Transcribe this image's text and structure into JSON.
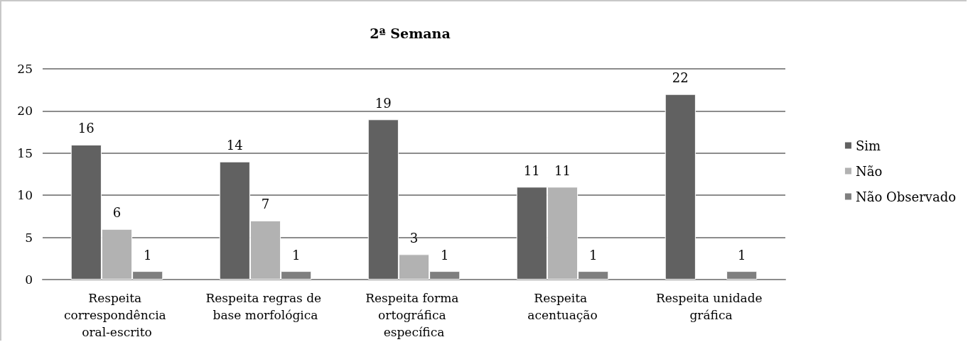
{
  "chart_data": {
    "type": "bar",
    "title": "2ª Semana",
    "categories": [
      "Respeita correspondência oral-escrito",
      "Respeita regras de base morfológica",
      "Respeita forma ortográfica específica",
      "Respeita acentuação",
      "Respeita unidade gráfica"
    ],
    "series": [
      {
        "name": "Sim",
        "color": "#616161",
        "values": [
          16,
          14,
          19,
          11,
          22
        ]
      },
      {
        "name": "Não",
        "color": "#b2b2b2",
        "values": [
          6,
          7,
          3,
          11,
          null
        ]
      },
      {
        "name": "Não Observado",
        "color": "#7f7f7f",
        "values": [
          1,
          1,
          1,
          1,
          1
        ]
      }
    ],
    "ylim": [
      0,
      25
    ],
    "yticks": [
      0,
      5,
      10,
      15,
      20,
      25
    ],
    "grid": "y",
    "legend": "right",
    "data_labels": true
  }
}
